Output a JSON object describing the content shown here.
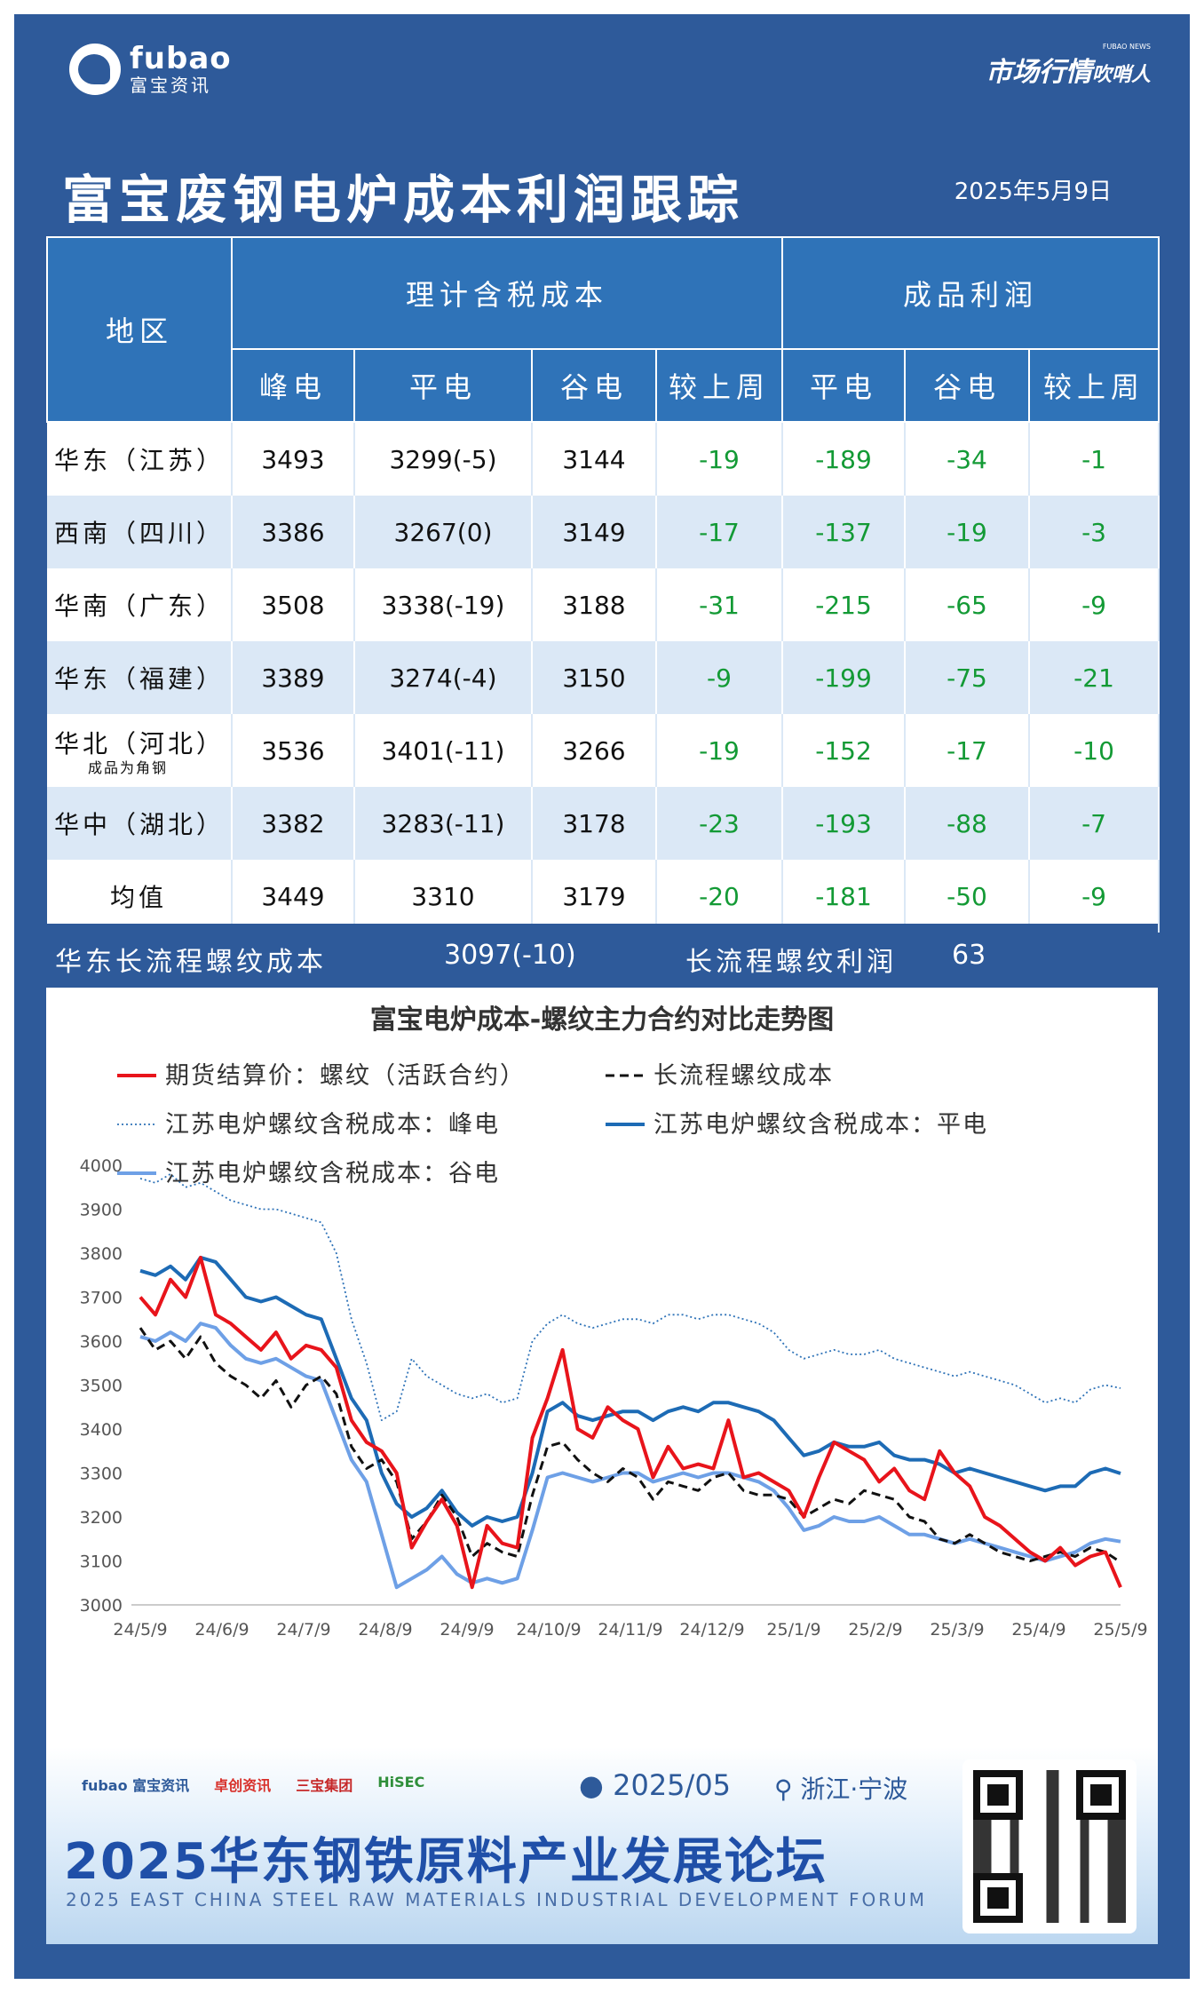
{
  "header": {
    "logo_en": "fubao",
    "logo_cn": "富宝资讯",
    "market_label": "市场行情",
    "market_label2": "吹哨人",
    "market_sub": "FUBAO NEWS",
    "title": "富宝废钢电炉成本利润跟踪",
    "date": "2025年5月9日"
  },
  "table": {
    "col_region": "地区",
    "group_cost": "理计含税成本",
    "group_profit": "成品利润",
    "cost_cols": [
      "峰电",
      "平电",
      "谷电",
      "较上周"
    ],
    "profit_cols": [
      "平电",
      "谷电",
      "较上周"
    ],
    "rows": [
      {
        "region": "华东（江苏）",
        "note": "",
        "peak": "3493",
        "flat": "3299(-5)",
        "valley": "3144",
        "cost_wow": "-19",
        "p_flat": "-189",
        "p_valley": "-34",
        "p_wow": "-1"
      },
      {
        "region": "西南（四川）",
        "note": "",
        "peak": "3386",
        "flat": "3267(0)",
        "valley": "3149",
        "cost_wow": "-17",
        "p_flat": "-137",
        "p_valley": "-19",
        "p_wow": "-3"
      },
      {
        "region": "华南（广东）",
        "note": "",
        "peak": "3508",
        "flat": "3338(-19)",
        "valley": "3188",
        "cost_wow": "-31",
        "p_flat": "-215",
        "p_valley": "-65",
        "p_wow": "-9"
      },
      {
        "region": "华东（福建）",
        "note": "",
        "peak": "3389",
        "flat": "3274(-4)",
        "valley": "3150",
        "cost_wow": "-9",
        "p_flat": "-199",
        "p_valley": "-75",
        "p_wow": "-21"
      },
      {
        "region": "华北（河北）",
        "note": "成品为角钢",
        "peak": "3536",
        "flat": "3401(-11)",
        "valley": "3266",
        "cost_wow": "-19",
        "p_flat": "-152",
        "p_valley": "-17",
        "p_wow": "-10"
      },
      {
        "region": "华中（湖北）",
        "note": "",
        "peak": "3382",
        "flat": "3283(-11)",
        "valley": "3178",
        "cost_wow": "-23",
        "p_flat": "-193",
        "p_valley": "-88",
        "p_wow": "-7"
      }
    ],
    "avg": {
      "region": "均值",
      "peak": "3449",
      "flat": "3310",
      "valley": "3179",
      "cost_wow": "-20",
      "p_flat": "-181",
      "p_valley": "-50",
      "p_wow": "-9"
    }
  },
  "long_process": {
    "cost_label": "华东长流程螺纹成本",
    "cost_value": "3097(-10)",
    "profit_label": "长流程螺纹利润",
    "profit_value": "63"
  },
  "colors": {
    "frame": "#2e5a9a",
    "header_cell": "#2f73b8",
    "stripe": "#dbe8f6",
    "green": "#139a35",
    "futures": "#e8141b",
    "long": "#111111",
    "peak": "#2f73b8",
    "flat": "#1d6bb5",
    "valley": "#6ea0e6"
  },
  "chart_data": {
    "type": "line",
    "title": "富宝电炉成本-螺纹主力合约对比走势图",
    "ylim": [
      3000,
      4000
    ],
    "yticks": [
      3000,
      3100,
      3200,
      3300,
      3400,
      3500,
      3600,
      3700,
      3800,
      3900,
      4000
    ],
    "xticks": [
      "24/5/9",
      "24/6/9",
      "24/7/9",
      "24/8/9",
      "24/9/9",
      "24/10/9",
      "24/11/9",
      "24/12/9",
      "25/1/9",
      "25/2/9",
      "25/3/9",
      "25/4/9",
      "25/5/9"
    ],
    "legend": [
      "期货结算价：螺纹（活跃合约）",
      "长流程螺纹成本",
      "江苏电炉螺纹含税成本：峰电",
      "江苏电炉螺纹含税成本：平电",
      "江苏电炉螺纹含税成本：谷电"
    ],
    "series": [
      {
        "name": "期货结算价：螺纹（活跃合约）",
        "style": "solid-red",
        "values": [
          3700,
          3660,
          3740,
          3700,
          3790,
          3660,
          3640,
          3610,
          3580,
          3620,
          3560,
          3590,
          3580,
          3540,
          3420,
          3370,
          3350,
          3300,
          3130,
          3190,
          3240,
          3180,
          3040,
          3180,
          3140,
          3130,
          3380,
          3470,
          3580,
          3400,
          3380,
          3450,
          3420,
          3400,
          3290,
          3360,
          3310,
          3320,
          3310,
          3420,
          3290,
          3300,
          3280,
          3260,
          3200,
          3290,
          3370,
          3350,
          3330,
          3280,
          3310,
          3260,
          3240,
          3350,
          3300,
          3270,
          3200,
          3180,
          3150,
          3120,
          3100,
          3130,
          3090,
          3110,
          3120,
          3040
        ]
      },
      {
        "name": "长流程螺纹成本",
        "style": "dashed-black",
        "values": [
          3630,
          3580,
          3600,
          3560,
          3610,
          3550,
          3520,
          3500,
          3470,
          3510,
          3450,
          3500,
          3520,
          3480,
          3360,
          3310,
          3330,
          3280,
          3150,
          3190,
          3250,
          3200,
          3110,
          3140,
          3120,
          3110,
          3250,
          3360,
          3370,
          3330,
          3300,
          3280,
          3310,
          3290,
          3240,
          3280,
          3270,
          3260,
          3290,
          3300,
          3260,
          3250,
          3250,
          3240,
          3200,
          3220,
          3240,
          3230,
          3260,
          3250,
          3240,
          3200,
          3190,
          3150,
          3140,
          3160,
          3140,
          3120,
          3110,
          3100,
          3110,
          3120,
          3110,
          3130,
          3120,
          3097
        ]
      },
      {
        "name": "江苏电炉螺纹含税成本：峰电",
        "style": "dotted-blue",
        "values": [
          3970,
          3960,
          3980,
          3950,
          3960,
          3940,
          3920,
          3910,
          3900,
          3900,
          3890,
          3880,
          3870,
          3800,
          3650,
          3550,
          3420,
          3440,
          3560,
          3520,
          3500,
          3480,
          3470,
          3480,
          3460,
          3470,
          3600,
          3640,
          3660,
          3640,
          3630,
          3640,
          3650,
          3650,
          3640,
          3660,
          3660,
          3650,
          3660,
          3660,
          3650,
          3640,
          3620,
          3580,
          3560,
          3570,
          3580,
          3570,
          3570,
          3580,
          3560,
          3550,
          3540,
          3530,
          3520,
          3530,
          3520,
          3510,
          3500,
          3480,
          3460,
          3470,
          3460,
          3490,
          3500,
          3493
        ]
      },
      {
        "name": "江苏电炉螺纹含税成本：平电",
        "style": "solid-blue",
        "values": [
          3760,
          3750,
          3770,
          3740,
          3790,
          3780,
          3740,
          3700,
          3690,
          3700,
          3680,
          3660,
          3650,
          3560,
          3470,
          3420,
          3300,
          3230,
          3200,
          3220,
          3260,
          3210,
          3180,
          3200,
          3190,
          3200,
          3300,
          3440,
          3460,
          3430,
          3420,
          3430,
          3440,
          3440,
          3420,
          3440,
          3450,
          3440,
          3460,
          3460,
          3450,
          3440,
          3420,
          3380,
          3340,
          3350,
          3370,
          3360,
          3360,
          3370,
          3340,
          3330,
          3330,
          3320,
          3300,
          3310,
          3300,
          3290,
          3280,
          3270,
          3260,
          3270,
          3270,
          3300,
          3310,
          3299
        ]
      },
      {
        "name": "江苏电炉螺纹含税成本：谷电",
        "style": "solid-lightblue",
        "values": [
          3610,
          3600,
          3620,
          3600,
          3640,
          3630,
          3590,
          3560,
          3550,
          3560,
          3540,
          3520,
          3510,
          3420,
          3330,
          3280,
          3160,
          3040,
          3060,
          3080,
          3110,
          3070,
          3050,
          3060,
          3050,
          3060,
          3170,
          3290,
          3300,
          3290,
          3280,
          3290,
          3300,
          3300,
          3280,
          3290,
          3300,
          3290,
          3300,
          3300,
          3290,
          3280,
          3260,
          3220,
          3170,
          3180,
          3200,
          3190,
          3190,
          3200,
          3180,
          3160,
          3160,
          3150,
          3140,
          3150,
          3140,
          3130,
          3120,
          3110,
          3100,
          3110,
          3120,
          3140,
          3150,
          3144
        ]
      }
    ]
  }
}
